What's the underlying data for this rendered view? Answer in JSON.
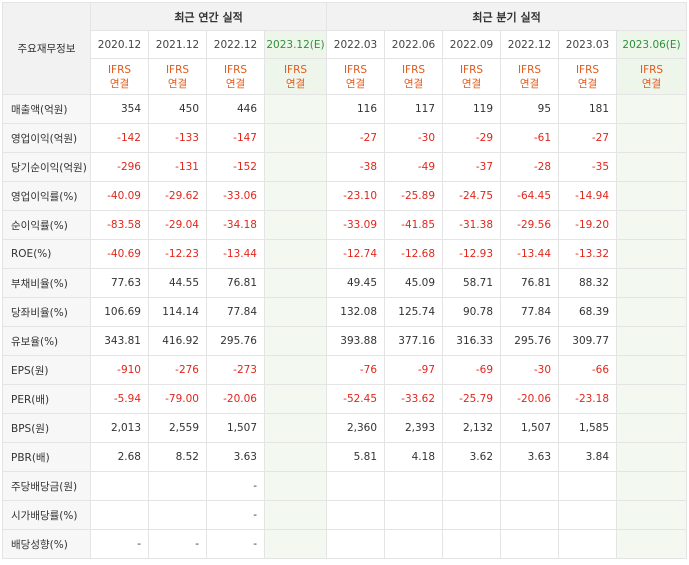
{
  "header": {
    "corner_label": "주요재무정보",
    "annual_group": "최근 연간 실적",
    "quarter_group": "최근 분기 실적",
    "periods": [
      {
        "label": "2020.12",
        "estimate": false
      },
      {
        "label": "2021.12",
        "estimate": false
      },
      {
        "label": "2022.12",
        "estimate": false
      },
      {
        "label": "2023.12(E)",
        "estimate": true
      },
      {
        "label": "2022.03",
        "estimate": false
      },
      {
        "label": "2022.06",
        "estimate": false
      },
      {
        "label": "2022.09",
        "estimate": false
      },
      {
        "label": "2022.12",
        "estimate": false
      },
      {
        "label": "2023.03",
        "estimate": false
      },
      {
        "label": "2023.06(E)",
        "estimate": true
      }
    ],
    "standard_line1": "IFRS",
    "standard_line2": "연결"
  },
  "rows": [
    {
      "label": "매출액(억원)",
      "group_start": false,
      "values": [
        "354",
        "450",
        "446",
        "",
        "116",
        "117",
        "119",
        "95",
        "181",
        ""
      ]
    },
    {
      "label": "영업이익(억원)",
      "group_start": false,
      "values": [
        "-142",
        "-133",
        "-147",
        "",
        "-27",
        "-30",
        "-29",
        "-61",
        "-27",
        ""
      ]
    },
    {
      "label": "당기순이익(억원)",
      "group_start": false,
      "values": [
        "-296",
        "-131",
        "-152",
        "",
        "-38",
        "-49",
        "-37",
        "-28",
        "-35",
        ""
      ]
    },
    {
      "label": "영업이익률(%)",
      "group_start": true,
      "values": [
        "-40.09",
        "-29.62",
        "-33.06",
        "",
        "-23.10",
        "-25.89",
        "-24.75",
        "-64.45",
        "-14.94",
        ""
      ]
    },
    {
      "label": "순이익률(%)",
      "group_start": false,
      "values": [
        "-83.58",
        "-29.04",
        "-34.18",
        "",
        "-33.09",
        "-41.85",
        "-31.38",
        "-29.56",
        "-19.20",
        ""
      ]
    },
    {
      "label": "ROE(%)",
      "group_start": false,
      "values": [
        "-40.69",
        "-12.23",
        "-13.44",
        "",
        "-12.74",
        "-12.68",
        "-12.93",
        "-13.44",
        "-13.32",
        ""
      ]
    },
    {
      "label": "부채비율(%)",
      "group_start": true,
      "values": [
        "77.63",
        "44.55",
        "76.81",
        "",
        "49.45",
        "45.09",
        "58.71",
        "76.81",
        "88.32",
        ""
      ]
    },
    {
      "label": "당좌비율(%)",
      "group_start": false,
      "values": [
        "106.69",
        "114.14",
        "77.84",
        "",
        "132.08",
        "125.74",
        "90.78",
        "77.84",
        "68.39",
        ""
      ]
    },
    {
      "label": "유보율(%)",
      "group_start": false,
      "values": [
        "343.81",
        "416.92",
        "295.76",
        "",
        "393.88",
        "377.16",
        "316.33",
        "295.76",
        "309.77",
        ""
      ]
    },
    {
      "label": "EPS(원)",
      "group_start": true,
      "values": [
        "-910",
        "-276",
        "-273",
        "",
        "-76",
        "-97",
        "-69",
        "-30",
        "-66",
        ""
      ]
    },
    {
      "label": "PER(배)",
      "group_start": false,
      "values": [
        "-5.94",
        "-79.00",
        "-20.06",
        "",
        "-52.45",
        "-33.62",
        "-25.79",
        "-20.06",
        "-23.18",
        ""
      ]
    },
    {
      "label": "BPS(원)",
      "group_start": false,
      "values": [
        "2,013",
        "2,559",
        "1,507",
        "",
        "2,360",
        "2,393",
        "2,132",
        "1,507",
        "1,585",
        ""
      ]
    },
    {
      "label": "PBR(배)",
      "group_start": false,
      "values": [
        "2.68",
        "8.52",
        "3.63",
        "",
        "5.81",
        "4.18",
        "3.62",
        "3.63",
        "3.84",
        ""
      ]
    },
    {
      "label": "주당배당금(원)",
      "group_start": true,
      "values": [
        "",
        "",
        "-",
        "",
        "",
        "",
        "",
        "",
        "",
        ""
      ]
    },
    {
      "label": "시가배당률(%)",
      "group_start": false,
      "values": [
        "",
        "",
        "-",
        "",
        "",
        "",
        "",
        "",
        "",
        ""
      ]
    },
    {
      "label": "배당성향(%)",
      "group_start": false,
      "values": [
        "-",
        "-",
        "-",
        "",
        "",
        "",
        "",
        "",
        "",
        ""
      ]
    }
  ],
  "colors": {
    "negative": "#e1261c",
    "standard": "#e05a1b",
    "estimate_text": "#2f8f3a",
    "estimate_bg": "#f3f8f1"
  }
}
